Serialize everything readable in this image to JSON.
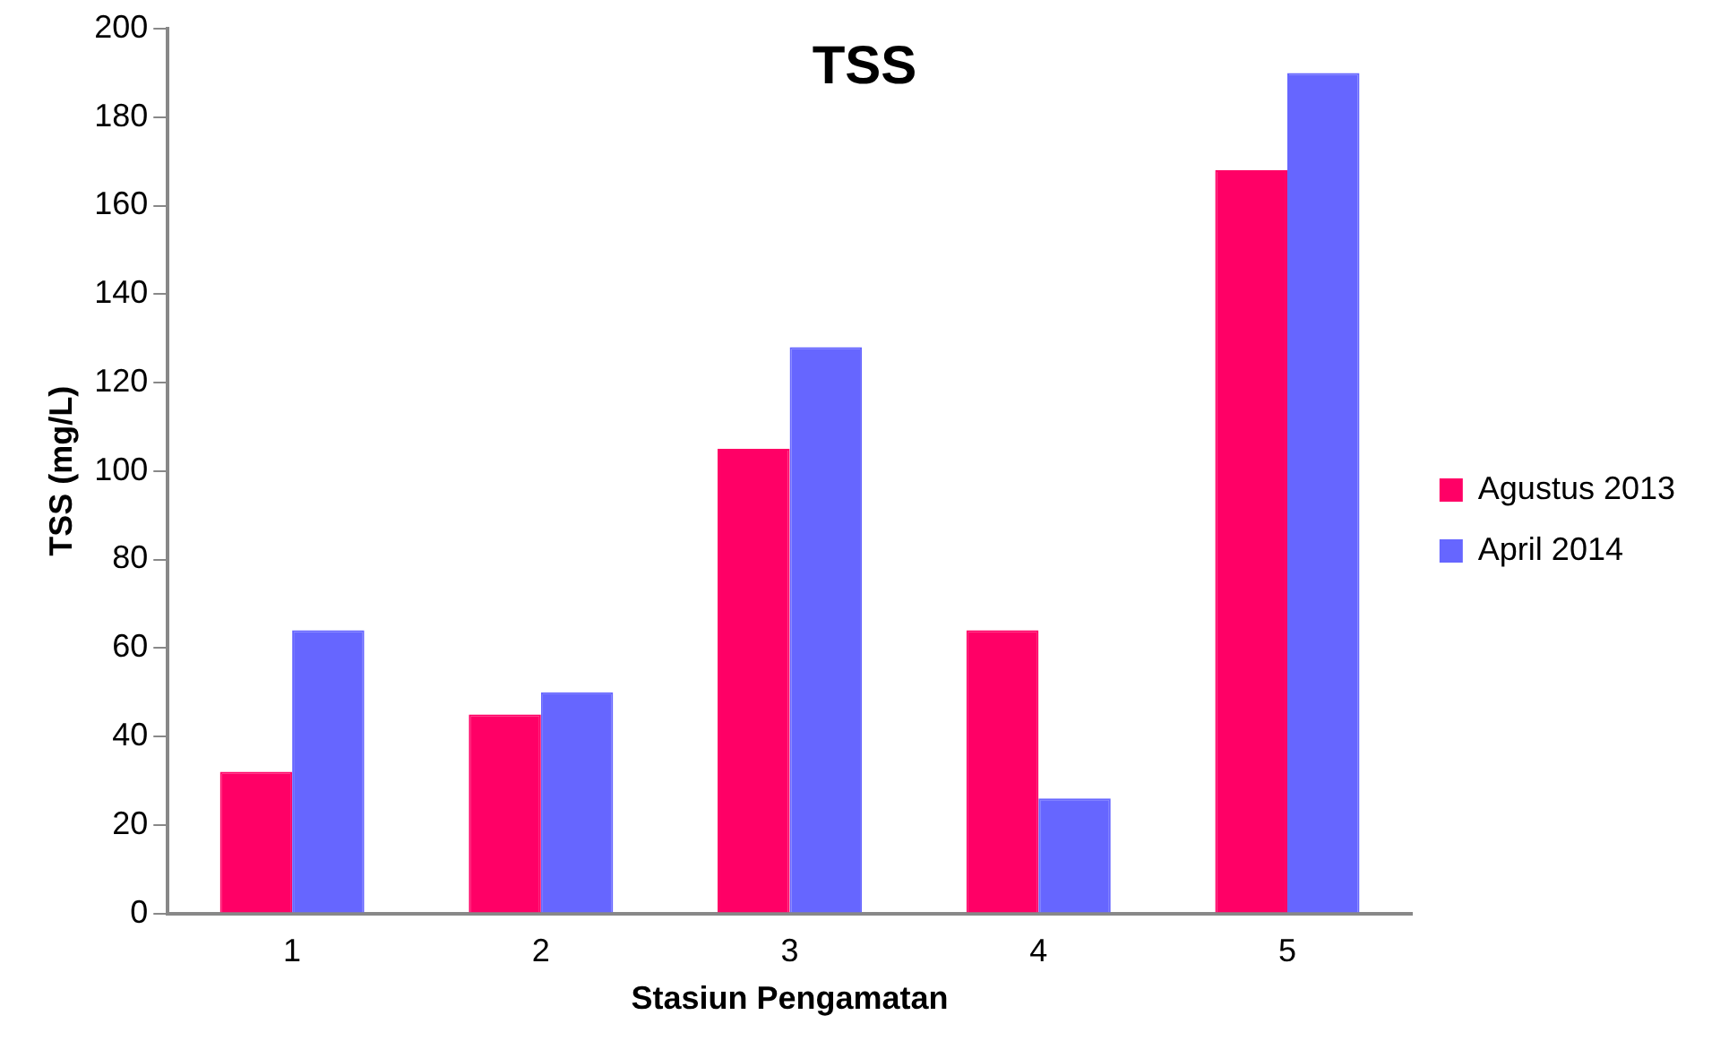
{
  "chart_data": {
    "type": "bar",
    "title": "TSS",
    "xlabel": "Stasiun Pengamatan",
    "ylabel": "TSS (mg/L)",
    "categories": [
      "1",
      "2",
      "3",
      "4",
      "5"
    ],
    "series": [
      {
        "name": "Agustus 2013",
        "color": "#ff0066",
        "values": [
          32,
          45,
          105,
          64,
          168
        ]
      },
      {
        "name": "April 2014",
        "color": "#6666ff",
        "values": [
          64,
          50,
          128,
          26,
          190
        ]
      }
    ],
    "ylim": [
      0,
      200
    ],
    "yticks": [
      0,
      20,
      40,
      60,
      80,
      100,
      120,
      140,
      160,
      180,
      200
    ],
    "grid": false,
    "legend": "right"
  }
}
